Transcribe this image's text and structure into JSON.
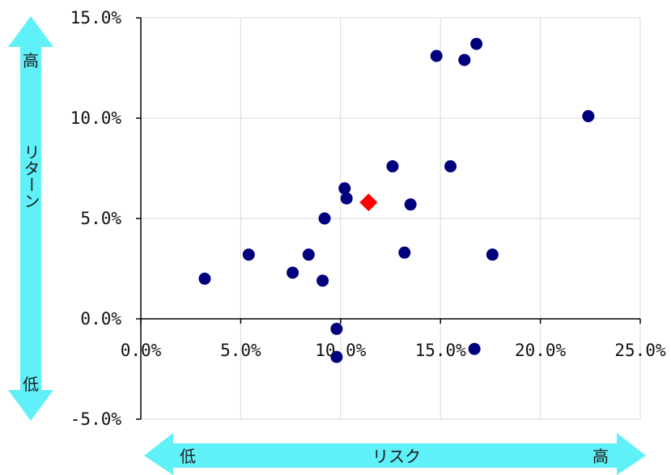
{
  "chart_data": {
    "type": "scatter",
    "x_ticks": [
      "0.0%",
      "5.0%",
      "10.0%",
      "15.0%",
      "20.0%",
      "25.0%"
    ],
    "y_ticks": [
      "-5.0%",
      "0.0%",
      "5.0%",
      "10.0%",
      "15.0%"
    ],
    "xlim": [
      0,
      25
    ],
    "ylim": [
      -5,
      15
    ],
    "grid": true,
    "x_arrow": {
      "low": "低",
      "label": "リスク",
      "high": "高"
    },
    "y_arrow": {
      "low": "低",
      "label": "リターン",
      "high": "高"
    },
    "series": [
      {
        "marker": "circle",
        "color": "#00007f",
        "points": [
          [
            3.2,
            2.0
          ],
          [
            5.4,
            3.2
          ],
          [
            7.6,
            2.3
          ],
          [
            8.4,
            3.2
          ],
          [
            9.1,
            1.9
          ],
          [
            9.2,
            5.0
          ],
          [
            9.8,
            -0.5
          ],
          [
            9.8,
            -1.9
          ],
          [
            10.2,
            6.5
          ],
          [
            10.3,
            6.0
          ],
          [
            12.6,
            7.6
          ],
          [
            13.2,
            3.3
          ],
          [
            13.5,
            5.7
          ],
          [
            14.8,
            13.1
          ],
          [
            15.5,
            7.6
          ],
          [
            16.2,
            12.9
          ],
          [
            16.7,
            -1.5
          ],
          [
            16.8,
            13.7
          ],
          [
            17.6,
            3.2
          ],
          [
            22.4,
            10.1
          ]
        ]
      },
      {
        "marker": "diamond",
        "color": "#ff0000",
        "points": [
          [
            11.4,
            5.8
          ]
        ]
      }
    ]
  }
}
